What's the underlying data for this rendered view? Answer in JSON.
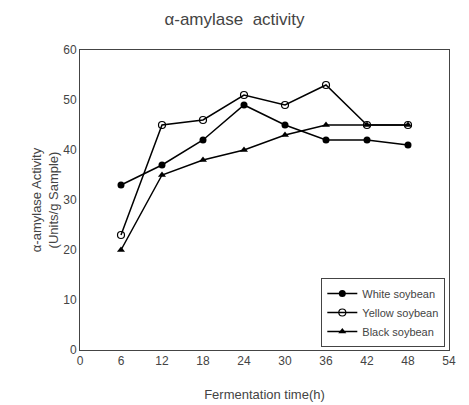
{
  "chart_data": {
    "type": "line",
    "title": "α-amylase  activity",
    "xlabel": "Fermentation time(h)",
    "ylabel": "α-amylase Activity\n(Units/g Sample)",
    "x": [
      6,
      12,
      18,
      24,
      30,
      36,
      42,
      48
    ],
    "series": [
      {
        "name": "White soybean",
        "color": "#000000",
        "marker": "circle",
        "values": [
          33,
          37,
          42,
          49,
          45,
          42,
          42,
          41
        ]
      },
      {
        "name": "Yellow soybean",
        "color": "#000000",
        "marker": "circle-open",
        "values": [
          23,
          45,
          46,
          51,
          49,
          53,
          45,
          45
        ]
      },
      {
        "name": "Black soybean",
        "color": "#000000",
        "marker": "triangle-up",
        "values": [
          20,
          35,
          38,
          40,
          43,
          45,
          45,
          45
        ]
      }
    ],
    "xlim": [
      0,
      54
    ],
    "ylim": [
      0,
      60
    ],
    "xticks": [
      0,
      6,
      12,
      18,
      24,
      30,
      36,
      42,
      48,
      54
    ],
    "yticks": [
      0,
      10,
      20,
      30,
      40,
      50,
      60
    ],
    "grid": false,
    "legend": "lower right"
  }
}
